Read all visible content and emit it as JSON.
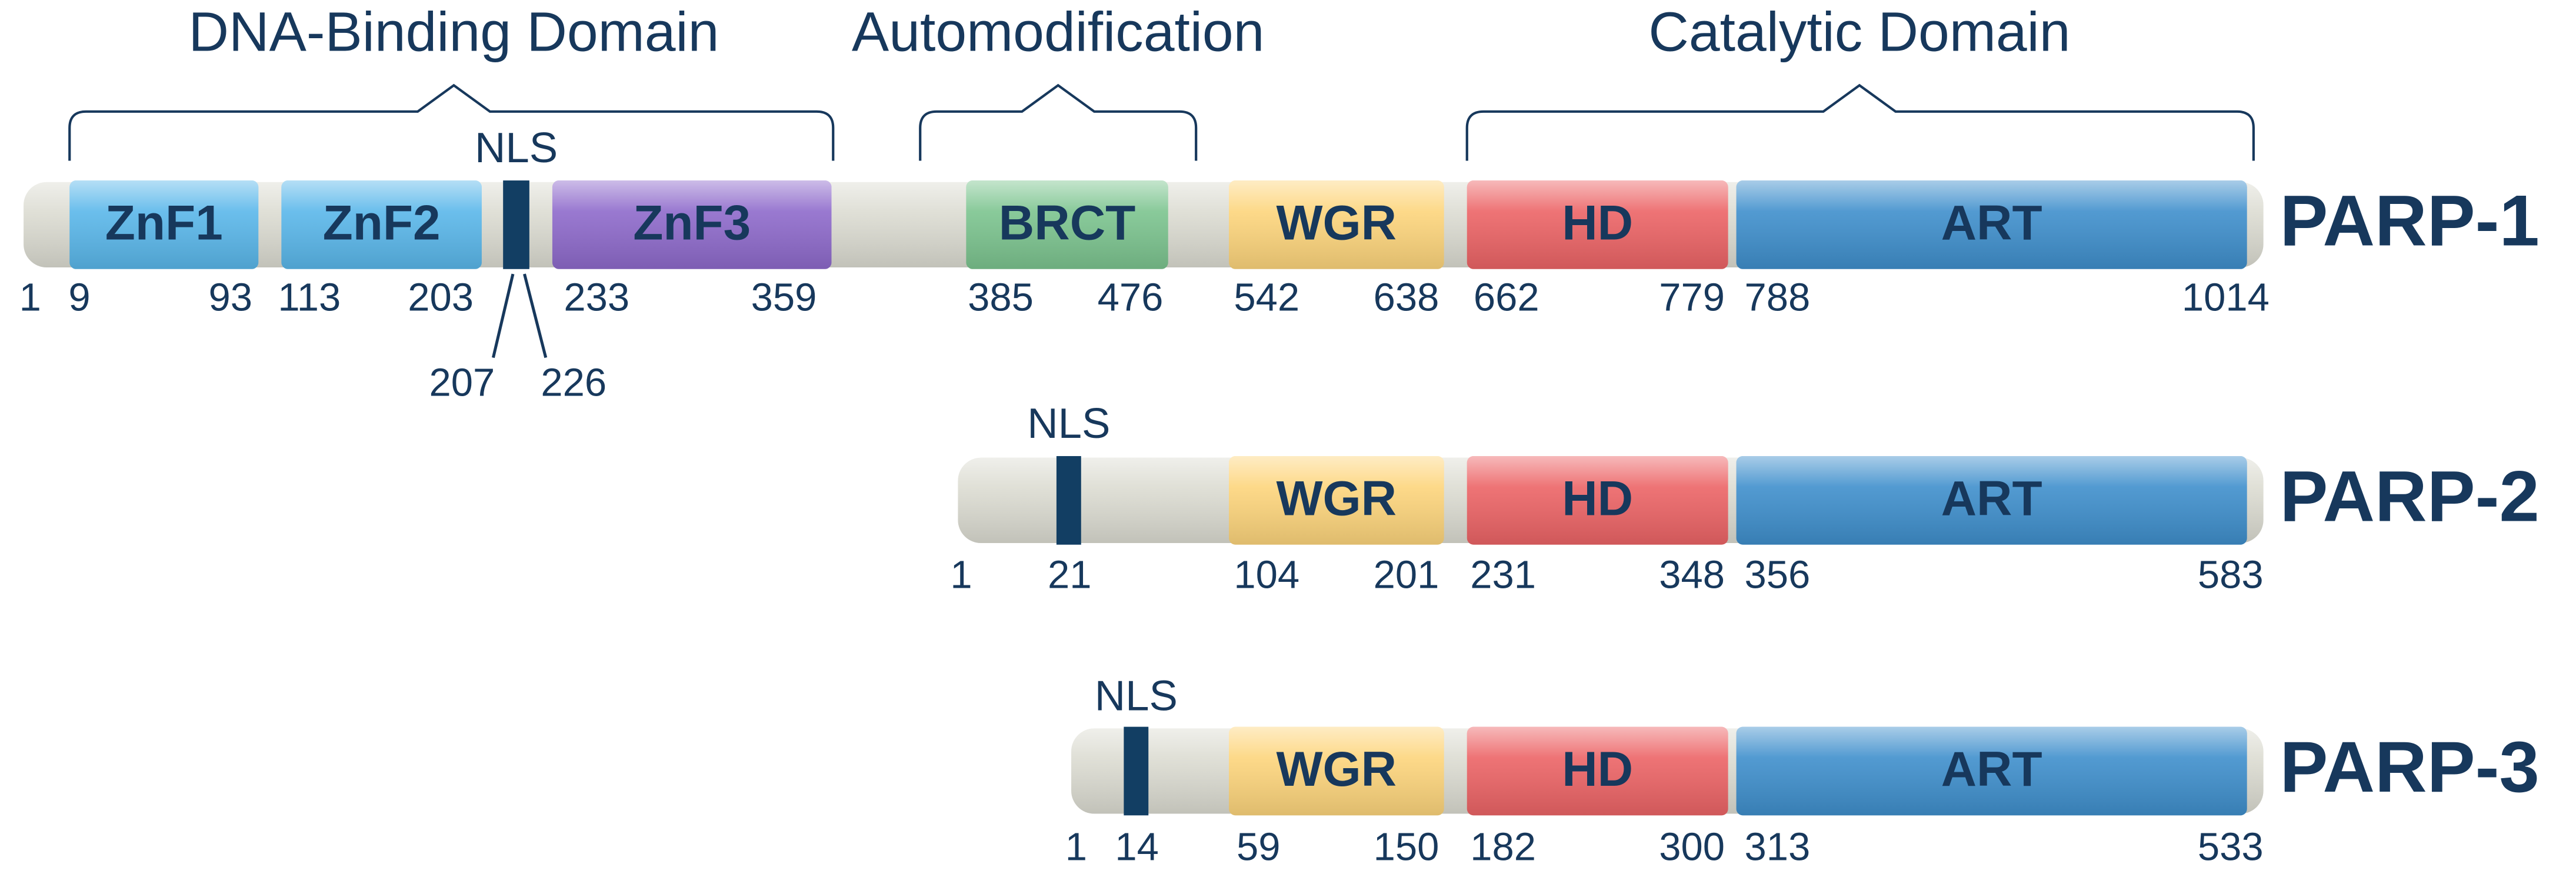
{
  "regions": [
    {
      "label": "DNA-Binding Domain"
    },
    {
      "label": "Automodification"
    },
    {
      "label": "Catalytic Domain"
    }
  ],
  "proteins": [
    {
      "name": "PARP-1",
      "nls": "NLS",
      "domains": [
        {
          "label": "ZnF1"
        },
        {
          "label": "ZnF2"
        },
        {
          "label": "ZnF3"
        },
        {
          "label": "BRCT"
        },
        {
          "label": "WGR"
        },
        {
          "label": "HD"
        },
        {
          "label": "ART"
        }
      ],
      "positions": [
        1,
        9,
        93,
        113,
        203,
        233,
        359,
        385,
        476,
        542,
        638,
        662,
        779,
        788,
        1014
      ],
      "nls_range": [
        207,
        226
      ]
    },
    {
      "name": "PARP-2",
      "nls": "NLS",
      "domains": [
        {
          "label": "WGR"
        },
        {
          "label": "HD"
        },
        {
          "label": "ART"
        }
      ],
      "positions": [
        1,
        21,
        104,
        201,
        231,
        348,
        356,
        583
      ]
    },
    {
      "name": "PARP-3",
      "nls": "NLS",
      "domains": [
        {
          "label": "WGR"
        },
        {
          "label": "HD"
        },
        {
          "label": "ART"
        }
      ],
      "positions": [
        1,
        14,
        59,
        150,
        182,
        300,
        313,
        533
      ]
    }
  ]
}
